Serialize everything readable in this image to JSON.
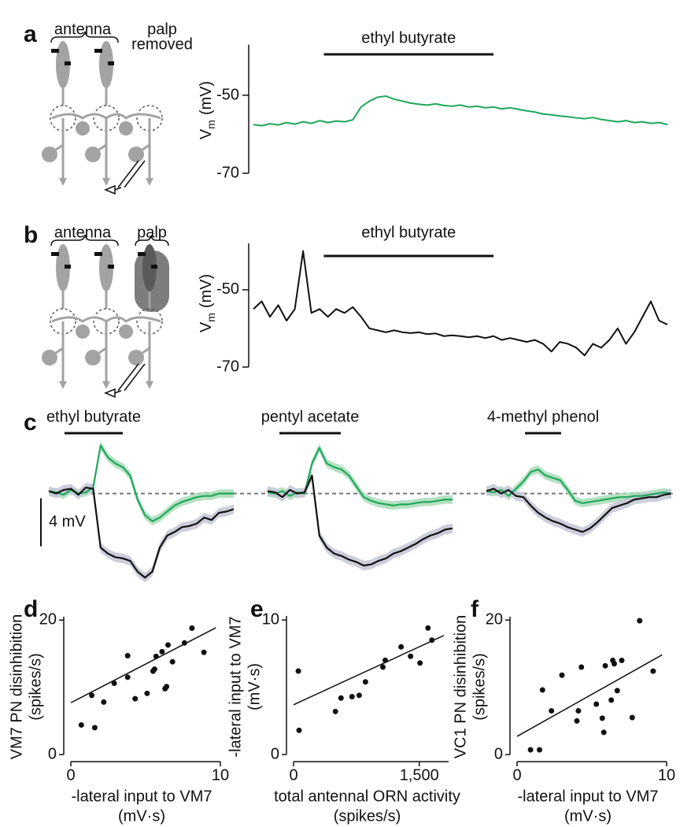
{
  "diagrams": [
    {
      "antenna": "antenna",
      "palp": [
        "palp",
        "removed"
      ]
    },
    {
      "antenna": "antenna",
      "palp": [
        "palp"
      ]
    }
  ],
  "chart_data": [
    {
      "type": "line",
      "panel": "a",
      "ylabel": {
        "main": "V",
        "sub": "m",
        "unit": "(mV)"
      },
      "stimulus": {
        "label": "ethyl butyrate",
        "start": 17,
        "end": 58
      },
      "xlim": [
        0,
        100
      ],
      "ylim": [
        -70,
        -37
      ],
      "yticks": [
        -50,
        -70
      ],
      "series": [
        {
          "color": "#1fa85a",
          "values": [
            -57.5,
            -57.8,
            -57.3,
            -57.6,
            -57,
            -57.4,
            -56.8,
            -57.2,
            -56.5,
            -57,
            -56.6,
            -56.8,
            -56.3,
            -53,
            -51.5,
            -50.5,
            -50.2,
            -51,
            -51.5,
            -52,
            -52.3,
            -52.5,
            -52.2,
            -52.6,
            -52.8,
            -52.5,
            -53,
            -52.8,
            -53.2,
            -53,
            -53.5,
            -53.2,
            -53.6,
            -54,
            -54.3,
            -54.8,
            -55,
            -55.3,
            -55.5,
            -55.8,
            -56,
            -55.7,
            -56.2,
            -56.5,
            -56.8,
            -56.5,
            -57,
            -56.8,
            -57.2,
            -57,
            -57.5
          ]
        }
      ]
    },
    {
      "type": "line",
      "panel": "b",
      "ylabel": {
        "main": "V",
        "sub": "m",
        "unit": "(mV)"
      },
      "stimulus": {
        "label": "ethyl butyrate",
        "start": 17,
        "end": 58
      },
      "xlim": [
        0,
        100
      ],
      "ylim": [
        -70,
        -38
      ],
      "yticks": [
        -50,
        -70
      ],
      "series": [
        {
          "color": "#111111",
          "values": [
            -55,
            -53,
            -57,
            -54,
            -58,
            -55,
            -40,
            -56,
            -55,
            -57,
            -55,
            -56,
            -54.5,
            -57,
            -60,
            -60.5,
            -61,
            -60.5,
            -61,
            -61.2,
            -61,
            -61.5,
            -61.3,
            -62,
            -61.8,
            -62,
            -62.3,
            -62,
            -62.5,
            -62,
            -63,
            -62.5,
            -63,
            -63.5,
            -63,
            -64,
            -66,
            -63.5,
            -64,
            -65,
            -67,
            -64,
            -65,
            -63,
            -60,
            -64,
            -61,
            -57,
            -53,
            -58,
            -59
          ]
        }
      ]
    },
    {
      "type": "bandline",
      "panel": "c",
      "xlim": [
        0,
        100
      ],
      "ylim": [
        -7.5,
        4.5
      ],
      "baseline": 0,
      "scale_bar": {
        "label": "4 mV",
        "value": 4
      },
      "subplots": [
        {
          "stimulus": {
            "label": "ethyl butyrate",
            "start": 8.5,
            "end": 40
          },
          "series": [
            {
              "color": "#1fa85a",
              "band": "#a9dcb9",
              "sem": 0.35,
              "values": [
                0.2,
                0.1,
                -0.1,
                0.3,
                0,
                0.1,
                0.5,
                4.0,
                3.0,
                2.5,
                2.2,
                1.5,
                -0.5,
                -1.8,
                -2.3,
                -2.0,
                -1.5,
                -1.0,
                -0.7,
                -0.5,
                -0.3,
                -0.2,
                -0.2,
                0.0,
                0.0,
                0.0
              ]
            },
            {
              "color": "#111111",
              "band": "#c3c6d6",
              "sem": 0.4,
              "values": [
                0.2,
                0.0,
                0.3,
                0.4,
                -0.1,
                0.5,
                0.4,
                -4.5,
                -5.0,
                -5.3,
                -5.4,
                -5.6,
                -6.5,
                -7.0,
                -6.5,
                -4.5,
                -3.5,
                -3.2,
                -2.8,
                -2.7,
                -2.5,
                -2.0,
                -2.2,
                -1.6,
                -1.5,
                -1.3
              ]
            }
          ]
        },
        {
          "stimulus": {
            "label": "pentyl acetate",
            "start": 6.4,
            "end": 39.6
          },
          "series": [
            {
              "color": "#1fa85a",
              "band": "#a9dcb9",
              "sem": 0.35,
              "values": [
                0.1,
                0.0,
                0.2,
                -0.2,
                0.1,
                0.0,
                2.5,
                3.8,
                2.5,
                2.2,
                2.0,
                1.5,
                0.6,
                -0.3,
                -0.6,
                -0.8,
                -0.9,
                -1.0,
                -0.9,
                -0.9,
                -0.8,
                -0.7,
                -0.7,
                -0.6,
                -0.5,
                -0.5
              ]
            },
            {
              "color": "#111111",
              "band": "#c3c6d6",
              "sem": 0.4,
              "values": [
                0.2,
                0.1,
                -0.3,
                0.3,
                0.0,
                0.1,
                1.5,
                -3.5,
                -4.5,
                -5.0,
                -5.2,
                -5.5,
                -5.7,
                -6.0,
                -5.9,
                -5.6,
                -5.4,
                -5.0,
                -4.8,
                -4.5,
                -4.2,
                -3.8,
                -3.5,
                -3.3,
                -3.0,
                -2.9
              ]
            }
          ]
        },
        {
          "stimulus": {
            "label": "4-methyl phenol",
            "start": 20.9,
            "end": 40.4
          },
          "series": [
            {
              "color": "#1fa85a",
              "band": "#a9dcb9",
              "sem": 0.35,
              "values": [
                0.2,
                0.1,
                0.3,
                -0.2,
                0.4,
                1.0,
                1.8,
                2.0,
                1.5,
                1.3,
                1.1,
                0.3,
                -0.6,
                -0.8,
                -0.7,
                -0.6,
                -0.5,
                -0.4,
                -0.3,
                -0.3,
                -0.2,
                -0.2,
                -0.1,
                0.0,
                0.1,
                0.0
              ]
            },
            {
              "color": "#111111",
              "band": "#c3c6d6",
              "sem": 0.4,
              "values": [
                0.2,
                0.4,
                0.0,
                0.3,
                -0.2,
                -0.3,
                -1.0,
                -1.6,
                -2.0,
                -2.3,
                -2.5,
                -2.8,
                -3.0,
                -3.2,
                -2.9,
                -2.4,
                -1.8,
                -1.2,
                -1.0,
                -0.8,
                -0.5,
                -0.4,
                -0.3,
                -0.3,
                -0.1,
                0.0
              ]
            }
          ]
        }
      ]
    },
    {
      "type": "scatter",
      "panel": "d",
      "color": "#111111",
      "xlabel": [
        "-lateral input to VM7",
        "(mV·s)"
      ],
      "ylabel": [
        "VM7 PN disinhibition",
        "(spikes/s)"
      ],
      "xlim": [
        0,
        10
      ],
      "ylim": [
        0,
        20.5
      ],
      "xticks": [
        0,
        10
      ],
      "yticks": [
        0,
        20
      ],
      "x": [
        0.7,
        1.4,
        1.6,
        2.2,
        2.9,
        3.8,
        3.8,
        4.3,
        5.1,
        5.5,
        5.6,
        5.7,
        6.1,
        6.3,
        6.4,
        6.5,
        6.8,
        7.6,
        8.1,
        8.9
      ],
      "y": [
        4.4,
        8.8,
        4.0,
        7.8,
        10.6,
        11.5,
        14.7,
        8.3,
        9.1,
        12.4,
        12.7,
        14.6,
        15.3,
        9.8,
        10.1,
        16.3,
        13.8,
        16.6,
        18.8,
        15.2
      ],
      "fit": {
        "slope": 1.15,
        "intercept": 7.7
      }
    },
    {
      "type": "scatter",
      "panel": "e",
      "color": "#111111",
      "xlabel": [
        "total antennal ORN activity",
        "(spikes/s)"
      ],
      "ylabel": [
        "-lateral input to VM7",
        "(mV·s)"
      ],
      "xlim": [
        0,
        1850
      ],
      "ylim": [
        0,
        10.3
      ],
      "xticks": [
        0,
        {
          "value": 1500,
          "label": "1,500"
        }
      ],
      "yticks": [
        0,
        10
      ],
      "x": [
        57,
        66,
        500,
        566,
        698,
        783,
        858,
        1066,
        1094,
        1283,
        1396,
        1509,
        1604,
        1651
      ],
      "y": [
        6.2,
        1.8,
        3.2,
        4.2,
        4.3,
        4.4,
        5.4,
        6.5,
        7.0,
        8.0,
        7.3,
        6.8,
        9.4,
        8.5
      ],
      "fit": {
        "slope": 0.00287,
        "intercept": 3.7
      }
    },
    {
      "type": "scatter",
      "panel": "f",
      "color": "#111111",
      "xlabel": [
        "-lateral input to VM7",
        "(mV·s)"
      ],
      "ylabel": [
        "VC1 PN disinhibition",
        "(spikes/s)"
      ],
      "xlim": [
        0,
        10
      ],
      "ylim": [
        0,
        20.5
      ],
      "xticks": [
        0,
        10
      ],
      "yticks": [
        0,
        20
      ],
      "x": [
        0.9,
        1.5,
        1.7,
        2.3,
        3.0,
        4.0,
        4.1,
        4.3,
        5.3,
        5.7,
        5.8,
        5.9,
        6.3,
        6.4,
        6.5,
        6.7,
        7.0,
        7.7,
        8.2,
        9.1
      ],
      "y": [
        0.7,
        0.7,
        9.6,
        6.5,
        11.8,
        5.0,
        6.5,
        13.0,
        7.5,
        5.4,
        3.3,
        13.2,
        8.1,
        14.0,
        13.5,
        9.5,
        14.0,
        5.5,
        19.9,
        12.4
      ],
      "fit": {
        "slope": 1.25,
        "intercept": 2.7
      }
    }
  ]
}
